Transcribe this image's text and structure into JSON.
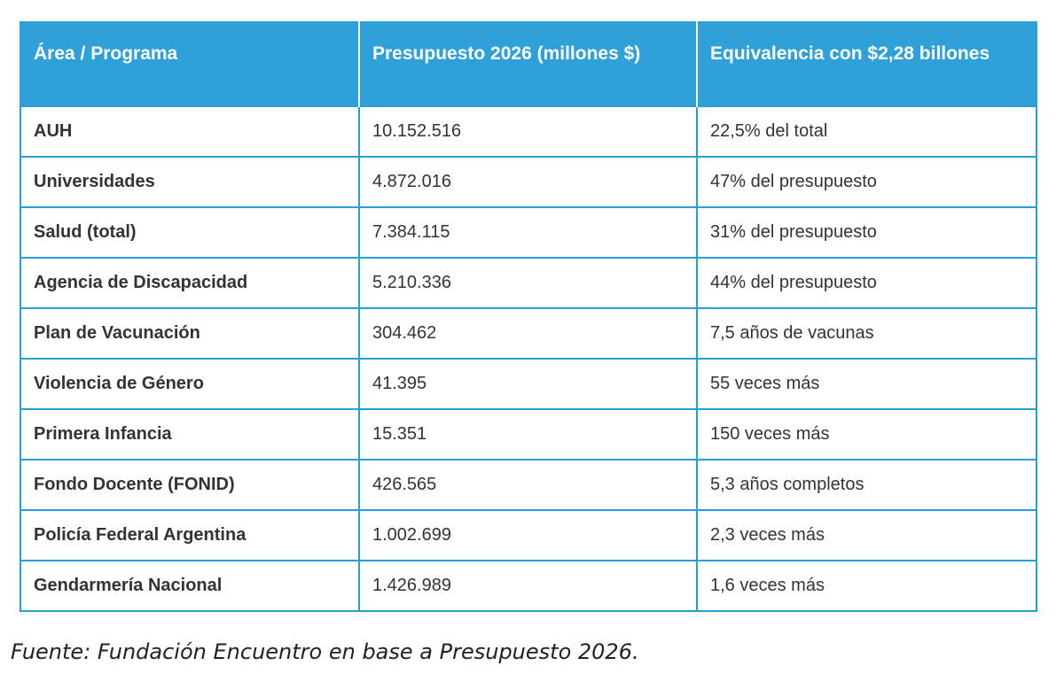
{
  "table": {
    "headers": [
      "Área / Programa",
      "Presupuesto 2026 (millones $)",
      "Equivalencia con $2,28 billones"
    ],
    "rows": [
      [
        "AUH",
        "10.152.516",
        "22,5% del total"
      ],
      [
        "Universidades",
        "4.872.016",
        "47% del presupuesto"
      ],
      [
        "Salud (total)",
        "7.384.115",
        "31% del presupuesto"
      ],
      [
        "Agencia de Discapacidad",
        "5.210.336",
        "44% del presupuesto"
      ],
      [
        "Plan de Vacunación",
        "304.462",
        "7,5 años de vacunas"
      ],
      [
        "Violencia de Género",
        "41.395",
        "55 veces más"
      ],
      [
        "Primera Infancia",
        "15.351",
        "150 veces más"
      ],
      [
        "Fondo Docente (FONID)",
        "426.565",
        "5,3 años completos"
      ],
      [
        "Policía Federal Argentina",
        "1.002.699",
        "2,3 veces más"
      ],
      [
        "Gendarmería Nacional",
        "1.426.989",
        "1,6 veces más"
      ]
    ],
    "header_color": "#2fa0d8",
    "border_color": "#2a9fd6"
  },
  "source": "Fuente: Fundación Encuentro en base a Presupuesto 2026."
}
